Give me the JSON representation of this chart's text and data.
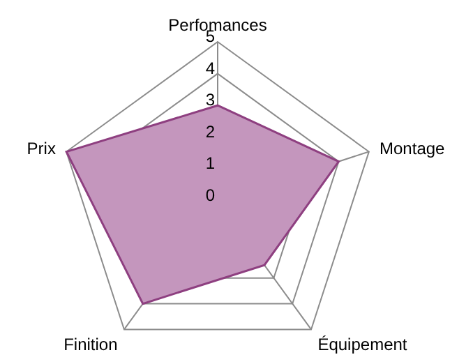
{
  "chart_data": {
    "type": "radar",
    "categories": [
      "Perfomances",
      "Montage",
      "Équipement",
      "Finition",
      "Prix"
    ],
    "series": [
      {
        "color": "#c496bd",
        "values": [
          3,
          4,
          2.5,
          4,
          5
        ]
      }
    ],
    "ylim": [
      0,
      5
    ],
    "yticks": [
      0,
      1,
      2,
      3,
      4,
      5
    ],
    "grid": true,
    "legend": false
  }
}
